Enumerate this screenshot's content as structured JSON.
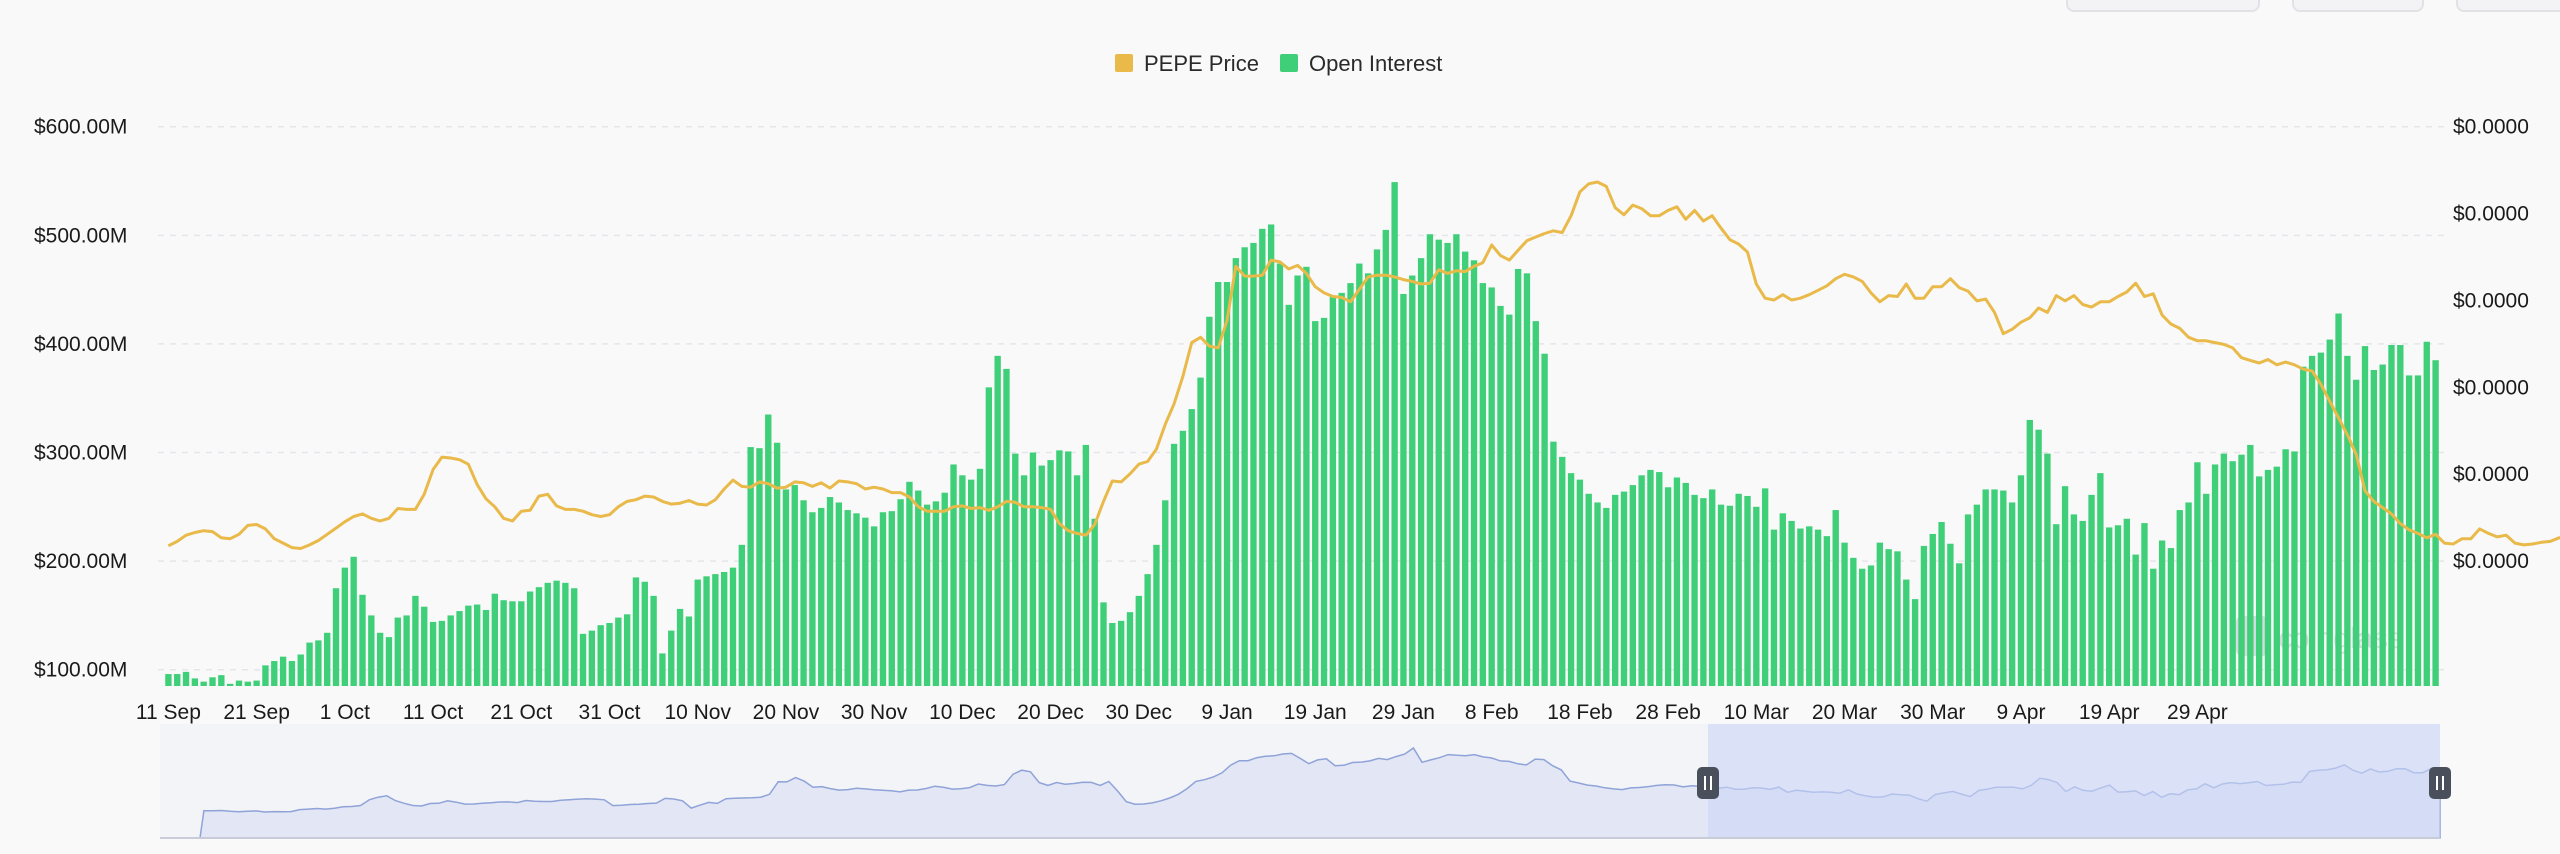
{
  "chart_data": {
    "type": "bar",
    "legend": [
      {
        "label": "PEPE Price",
        "color": "#e9b949"
      },
      {
        "label": "Open Interest",
        "color": "#3ecf78"
      }
    ],
    "legend_position": "top-center",
    "grid": true,
    "x_tick_labels": [
      "11 Sep",
      "21 Sep",
      "1 Oct",
      "11 Oct",
      "21 Oct",
      "31 Oct",
      "10 Nov",
      "20 Nov",
      "30 Nov",
      "10 Dec",
      "20 Dec",
      "30 Dec",
      "9 Jan",
      "19 Jan",
      "29 Jan",
      "8 Feb",
      "18 Feb",
      "28 Feb",
      "10 Mar",
      "20 Mar",
      "30 Mar",
      "9 Apr",
      "19 Apr",
      "29 Apr"
    ],
    "y_left_ticks": [
      "$600.00M",
      "$500.00M",
      "$400.00M",
      "$300.00M",
      "$200.00M",
      "$100.00M"
    ],
    "y_left_values": [
      600,
      500,
      400,
      300,
      200,
      100
    ],
    "y_right_ticks": [
      "$0.0000",
      "$0.0000",
      "$0.0000",
      "$0.0000",
      "$0.0000",
      "$0.0000"
    ],
    "ylim_left": [
      85,
      620
    ],
    "x_start_date": "2023-09-11",
    "series": [
      {
        "name": "Open Interest",
        "kind": "bar",
        "unit": "$M",
        "values": [
          96,
          96,
          98,
          92,
          89,
          93,
          95,
          87,
          90,
          89,
          90,
          104,
          108,
          112,
          108,
          114,
          125,
          127,
          134,
          175,
          194,
          204,
          169,
          150,
          134,
          130,
          148,
          150,
          168,
          158,
          144,
          145,
          150,
          154,
          159,
          160,
          155,
          170,
          164,
          163,
          163,
          172,
          176,
          180,
          182,
          180,
          175,
          133,
          136,
          141,
          143,
          148,
          151,
          185,
          181,
          168,
          115,
          136,
          156,
          149,
          183,
          186,
          188,
          190,
          194,
          215,
          305,
          304,
          335,
          309,
          266,
          270,
          256,
          245,
          249,
          259,
          254,
          247,
          244,
          240,
          232,
          245,
          246,
          257,
          273,
          265,
          252,
          255,
          263,
          289,
          279,
          275,
          285,
          360,
          389,
          377,
          299,
          279,
          300,
          288,
          293,
          302,
          301,
          279,
          307,
          239,
          162,
          143,
          145,
          153,
          168,
          188,
          215,
          256,
          308,
          320,
          340,
          369,
          425,
          457,
          457,
          479,
          489,
          493,
          506,
          510,
          474,
          436,
          463,
          471,
          421,
          424,
          444,
          447,
          456,
          474,
          465,
          487,
          505,
          549,
          446,
          463,
          479,
          501,
          496,
          493,
          501,
          485,
          477,
          456,
          452,
          435,
          427,
          469,
          465,
          421,
          391,
          310,
          296,
          281,
          275,
          262,
          254,
          249,
          261,
          264,
          270,
          279,
          284,
          282,
          268,
          277,
          272,
          261,
          258,
          266,
          252,
          251,
          262,
          260,
          250,
          267,
          229,
          244,
          237,
          230,
          232,
          229,
          223,
          247,
          217,
          203,
          193,
          196,
          217,
          211,
          209,
          183,
          165,
          214,
          225,
          236,
          216,
          198,
          243,
          252,
          266,
          266,
          265,
          254,
          279,
          330,
          321,
          299,
          234,
          269,
          243,
          237,
          261,
          281,
          231,
          233,
          239,
          206,
          235,
          193,
          219,
          212,
          247,
          254,
          291,
          262,
          289,
          299,
          292,
          298,
          307,
          278,
          284,
          287,
          303,
          301,
          379,
          389,
          392,
          404,
          428,
          389,
          367,
          398,
          376,
          381,
          399,
          399,
          371,
          371,
          402,
          385
        ]
      },
      {
        "name": "PEPE Price",
        "kind": "line",
        "values": [
          213,
          218,
          225,
          228,
          230,
          229,
          222,
          221,
          226,
          236,
          237,
          232,
          221,
          216,
          211,
          210,
          214,
          219,
          226,
          233,
          240,
          246,
          249,
          244,
          241,
          244,
          255,
          254,
          254,
          271,
          299,
          313,
          312,
          310,
          305,
          282,
          266,
          257,
          244,
          241,
          252,
          253,
          269,
          271,
          258,
          254,
          254,
          252,
          248,
          246,
          248,
          257,
          263,
          265,
          269,
          268,
          263,
          260,
          261,
          264,
          260,
          259,
          265,
          277,
          287,
          280,
          279,
          285,
          283,
          278,
          279,
          285,
          284,
          280,
          284,
          278,
          286,
          285,
          283,
          277,
          279,
          277,
          273,
          273,
          268,
          257,
          252,
          252,
          252,
          257,
          258,
          255,
          256,
          253,
          257,
          263,
          262,
          257,
          257,
          256,
          254,
          238,
          230,
          227,
          225,
          237,
          263,
          286,
          285,
          294,
          305,
          308,
          322,
          350,
          373,
          404,
          442,
          448,
          438,
          436,
          467,
          528,
          517,
          517,
          518,
          535,
          533,
          525,
          529,
          520,
          505,
          498,
          494,
          493,
          488,
          502,
          516,
          518,
          518,
          516,
          513,
          511,
          508,
          509,
          524,
          520,
          523,
          522,
          528,
          532,
          552,
          540,
          535,
          546,
          557,
          561,
          565,
          568,
          566,
          585,
          612,
          621,
          623,
          618,
          594,
          586,
          597,
          593,
          585,
          585,
          591,
          595,
          581,
          591,
          579,
          585,
          571,
          558,
          553,
          544,
          508,
          492,
          490,
          496,
          490,
          492,
          496,
          501,
          506,
          514,
          519,
          516,
          511,
          498,
          488,
          495,
          494,
          508,
          492,
          492,
          505,
          505,
          514,
          504,
          500,
          489,
          491,
          476,
          452,
          457,
          465,
          470,
          481,
          476,
          495,
          489,
          495,
          485,
          482,
          488,
          488,
          494,
          499,
          509,
          494,
          497,
          473,
          463,
          458,
          448,
          444,
          444,
          442,
          440,
          436,
          425,
          422,
          419,
          423,
          417,
          420,
          417,
          412,
          410,
          395,
          376,
          357,
          338,
          316,
          275,
          263,
          256,
          249,
          238,
          231,
          227,
          222,
          226,
          216,
          215,
          221,
          221,
          232,
          227,
          223,
          225,
          216,
          214,
          215,
          217,
          218,
          222,
          224,
          225,
          223,
          223,
          222,
          218,
          217,
          216,
          215,
          210,
          215,
          223,
          222,
          213,
          202,
          205,
          207,
          197,
          202,
          204,
          201,
          197,
          204,
          205,
          216,
          218,
          219,
          213,
          211,
          213,
          219,
          219,
          220,
          216,
          222,
          224,
          220,
          225,
          228,
          228,
          229,
          228,
          230,
          234,
          232,
          230,
          226,
          226
        ]
      }
    ],
    "navigator": {
      "selection": "18 Feb – 8 May"
    },
    "watermark": "coinglass"
  }
}
